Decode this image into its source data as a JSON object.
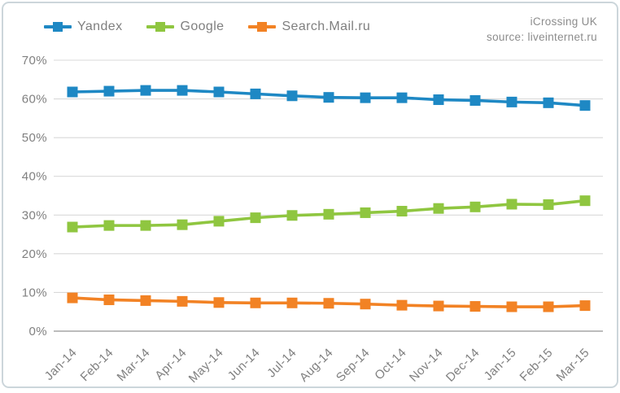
{
  "header": {
    "brand": "iCrossing UK",
    "source": "source: liveinternet.ru"
  },
  "chart_data": {
    "type": "line",
    "title": "",
    "xlabel": "",
    "ylabel": "",
    "ylim": [
      0,
      70
    ],
    "ytick_step": 10,
    "ytick_suffix": "%",
    "grid": true,
    "legend_position": "top-left",
    "marker_shape": "square",
    "categories": [
      "Jan-14",
      "Feb-14",
      "Mar-14",
      "Apr-14",
      "May-14",
      "Jun-14",
      "Jul-14",
      "Aug-14",
      "Sep-14",
      "Oct-14",
      "Nov-14",
      "Dec-14",
      "Jan-15",
      "Feb-15",
      "Mar-15"
    ],
    "series": [
      {
        "name": "Yandex",
        "color": "#1e88c4",
        "values": [
          61.8,
          62.0,
          62.2,
          62.2,
          61.8,
          61.3,
          60.8,
          60.4,
          60.3,
          60.3,
          59.8,
          59.6,
          59.2,
          59.0,
          58.3
        ]
      },
      {
        "name": "Google",
        "color": "#8fc640",
        "values": [
          26.9,
          27.3,
          27.3,
          27.5,
          28.4,
          29.3,
          29.9,
          30.2,
          30.6,
          31.0,
          31.7,
          32.1,
          32.8,
          32.7,
          33.7
        ]
      },
      {
        "name": "Search.Mail.ru",
        "color": "#f28224",
        "values": [
          8.6,
          8.1,
          7.9,
          7.7,
          7.4,
          7.3,
          7.3,
          7.2,
          7.0,
          6.7,
          6.5,
          6.4,
          6.3,
          6.3,
          6.6
        ]
      }
    ]
  },
  "colors": {
    "gridline": "#d9d9d9",
    "axis_line": "#a6a6a6",
    "tick_text": "#808080",
    "frame_border": "#ccd6db"
  }
}
